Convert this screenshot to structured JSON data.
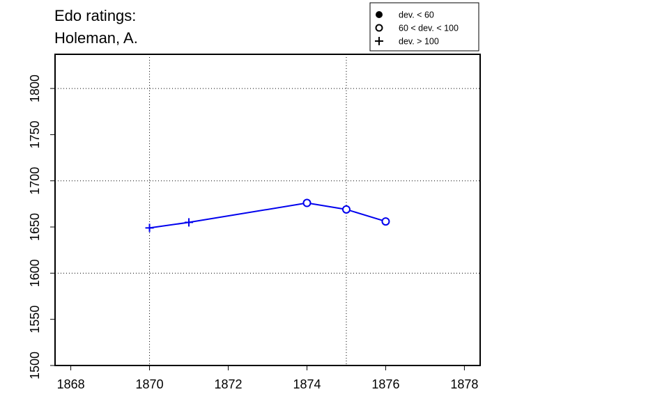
{
  "chart_data": {
    "type": "line",
    "title_lines": [
      "Edo ratings:",
      "Holeman, A."
    ],
    "xlabel": "",
    "ylabel": "",
    "xlim": [
      1867.6,
      1878.4
    ],
    "ylim": [
      1500,
      1837
    ],
    "x_ticks": [
      1868,
      1870,
      1872,
      1874,
      1876,
      1878
    ],
    "y_ticks": [
      1500,
      1550,
      1600,
      1650,
      1700,
      1750,
      1800
    ],
    "x_grid": [
      1870,
      1875
    ],
    "y_grid": [
      1600,
      1700,
      1800
    ],
    "grid": true,
    "legend_position": "top-right",
    "legend": [
      {
        "symbol": "filled-circle",
        "label": "dev. < 60"
      },
      {
        "symbol": "open-circle",
        "label": "60 < dev. < 100"
      },
      {
        "symbol": "plus",
        "label": "dev. > 100"
      }
    ],
    "series": [
      {
        "color": "#0000ee",
        "points": [
          {
            "x": 1870,
            "y": 1649,
            "marker": "plus"
          },
          {
            "x": 1871,
            "y": 1655,
            "marker": "plus"
          },
          {
            "x": 1874,
            "y": 1676,
            "marker": "open-circle"
          },
          {
            "x": 1875,
            "y": 1669,
            "marker": "open-circle"
          },
          {
            "x": 1876,
            "y": 1656,
            "marker": "open-circle"
          }
        ]
      }
    ]
  }
}
